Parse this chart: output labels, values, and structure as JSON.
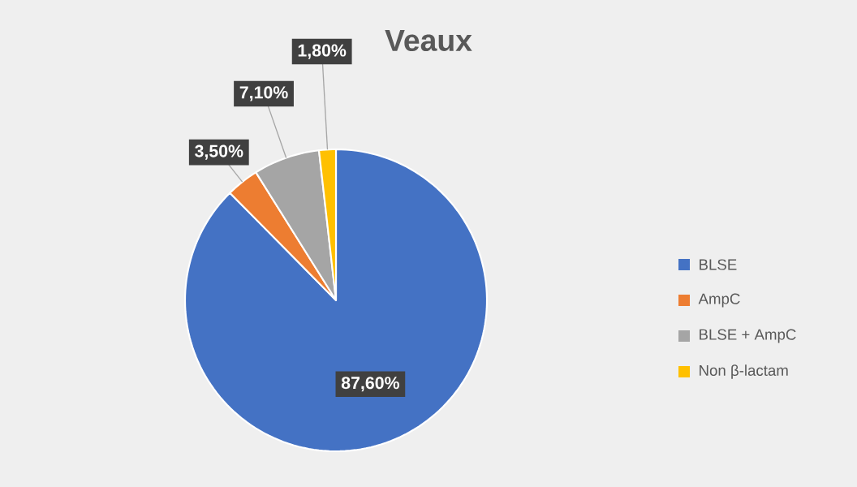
{
  "chart_data": {
    "type": "pie",
    "title": "Veaux",
    "categories": [
      "BLSE",
      "AmpC",
      "BLSE + AmpC",
      "Non β-lactam"
    ],
    "values": [
      87.6,
      3.5,
      7.1,
      1.8
    ],
    "value_labels": [
      "87,60%",
      "3,50%",
      "7,10%",
      "1,80%"
    ],
    "colors": [
      "#4472c4",
      "#ed7d31",
      "#a5a5a5",
      "#ffc000"
    ],
    "legend": "right"
  }
}
